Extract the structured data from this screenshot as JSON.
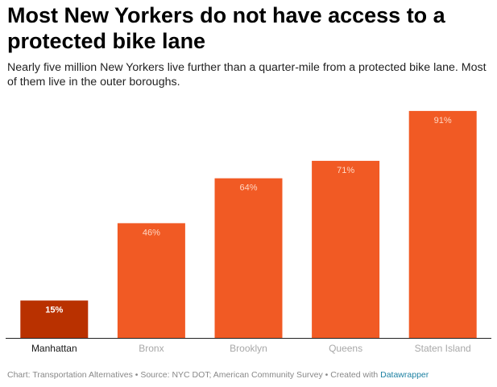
{
  "header": {
    "title": "Most New Yorkers do not have access to a protected bike lane",
    "subtitle": "Nearly five million New Yorkers live further than a quarter-mile from a protected bike lane. Most of them live in the outer boroughs."
  },
  "chart_data": {
    "type": "bar",
    "categories": [
      "Manhattan",
      "Bronx",
      "Brooklyn",
      "Queens",
      "Staten Island"
    ],
    "values": [
      15,
      46,
      64,
      71,
      91
    ],
    "value_labels": [
      "15%",
      "46%",
      "64%",
      "71%",
      "91%"
    ],
    "highlight_index": 0,
    "ylim": [
      0,
      100
    ],
    "grid": false,
    "legend": "none",
    "colors": {
      "highlight_bar": "#b93100",
      "bar": "#f15a24",
      "highlight_label": "#ffffff",
      "label": "#ffd7c3",
      "highlight_category": "#181818",
      "category": "#a8a8a8",
      "baseline": "#222222"
    }
  },
  "footer": {
    "text": "Chart: Transportation Alternatives • Source: NYC DOT; American Community Survey • Created with ",
    "brand": "Datawrapper",
    "brand_color": "#1d81a2"
  }
}
